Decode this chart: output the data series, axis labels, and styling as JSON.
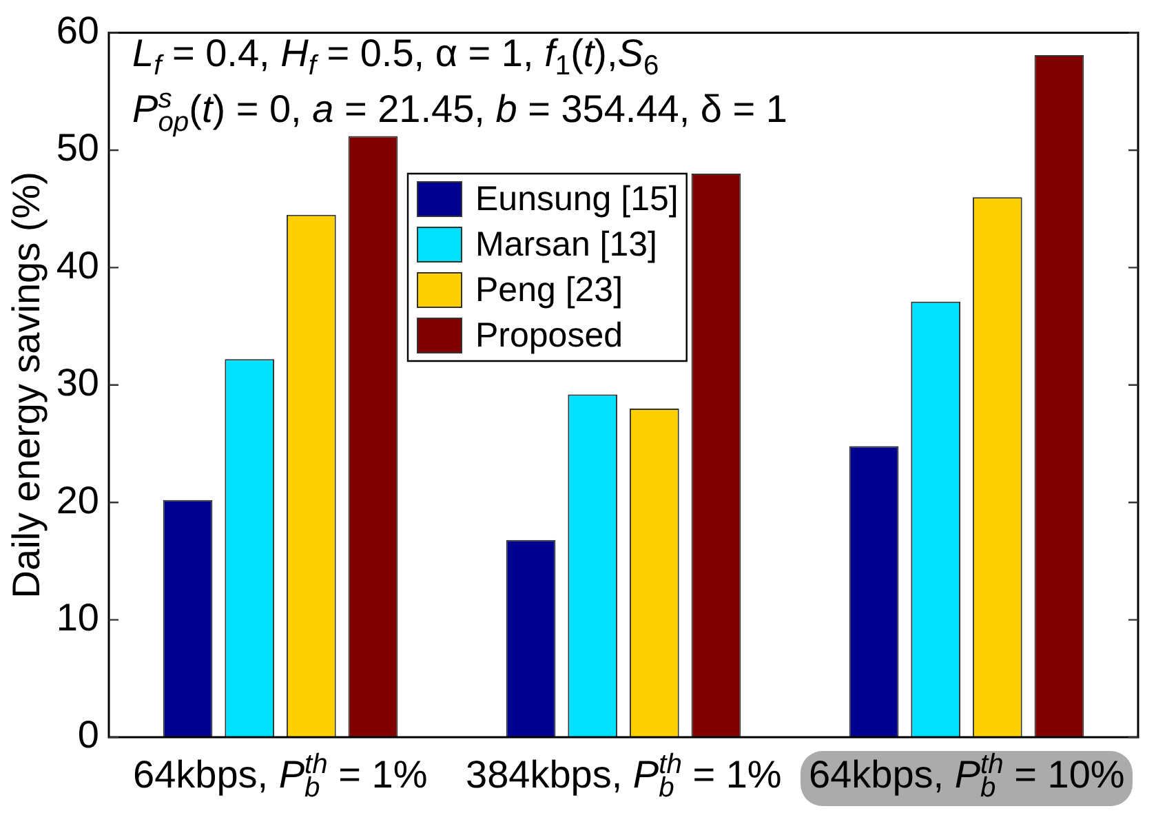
{
  "chart_data": {
    "type": "bar",
    "ylabel": "Daily energy savings (%)",
    "categories": [
      "64kbps, P$_{b}$$^{th}$ = 1%",
      "384kbps, P$_{b}$$^{th}$ = 1%",
      "64kbps, P$_{b}$$^{th}$ = 10%"
    ],
    "series": [
      {
        "name": "Eunsung [15]",
        "color": "#000090",
        "values": [
          20.2,
          16.8,
          24.8
        ]
      },
      {
        "name": "Marsan [13]",
        "color": "#00e0ff",
        "values": [
          32.2,
          29.2,
          37.1
        ]
      },
      {
        "name": "Peng [23]",
        "color": "#ffd000",
        "values": [
          44.5,
          28.0,
          46.0
        ]
      },
      {
        "name": "Proposed",
        "color": "#800000",
        "values": [
          51.2,
          48.0,
          58.1
        ]
      }
    ],
    "ylim": [
      0,
      60
    ],
    "yticks": [
      0,
      10,
      20,
      30,
      40,
      50,
      60
    ],
    "legend": "top",
    "annotations": [
      "L$_{f}$ = 0.4, H$_{f}$ = 0.5, α = 1, f$_{1}$(t),S$_{6}$",
      "P$^{s}$$_{op}$(t) = 0, a = 21.45, b = 354.44, δ = 1"
    ]
  }
}
